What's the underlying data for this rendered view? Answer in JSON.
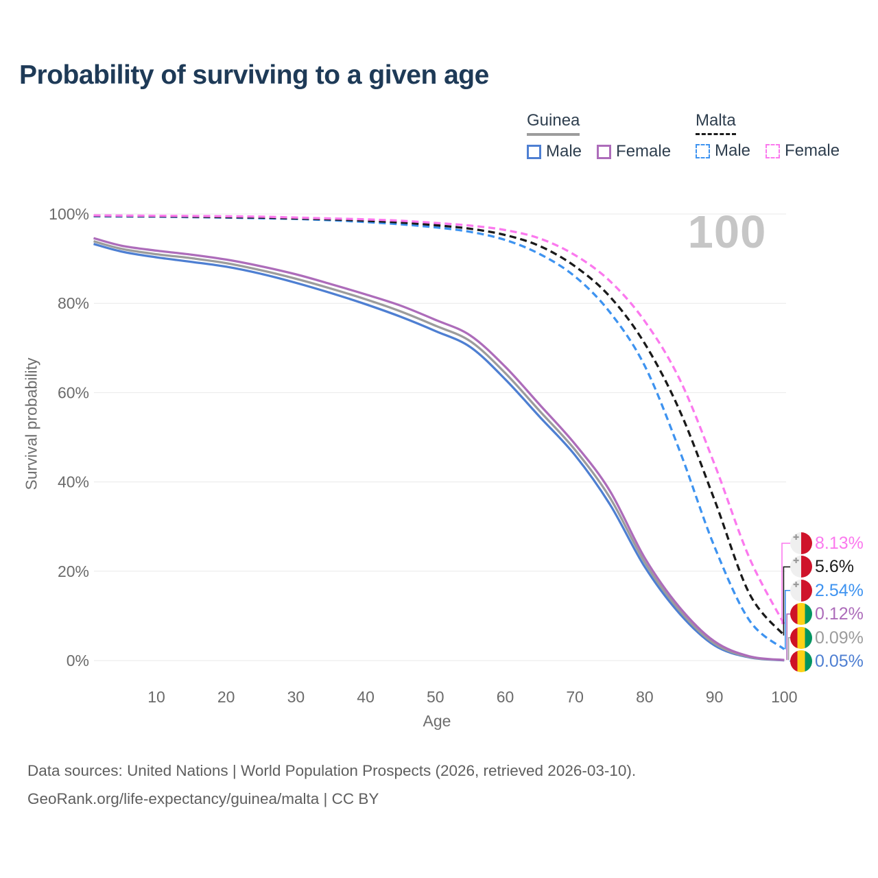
{
  "title": "Probability of surviving to a given age",
  "watermark_age": "100",
  "legend": {
    "groups": [
      {
        "label": "Guinea",
        "line_style": "solid",
        "line_color": "#9c9c9c",
        "items": [
          {
            "label": "Male",
            "color": "#4e7fd2"
          },
          {
            "label": "Female",
            "color": "#ad6cba"
          }
        ]
      },
      {
        "label": "Malta",
        "line_style": "dashed",
        "line_color": "#1a1a1a",
        "items": [
          {
            "label": "Male",
            "color": "#3e93f0"
          },
          {
            "label": "Female",
            "color": "#fb79ee"
          }
        ]
      }
    ]
  },
  "footer": {
    "line1": "Data sources: United Nations | World Population Prospects (2026, retrieved 2026-03-10).",
    "line2": "GeoRank.org/life-expectancy/guinea/malta | CC BY"
  },
  "chart_data": {
    "type": "line",
    "title": "Probability of surviving to a given age",
    "xlabel": "Age",
    "ylabel": "Survival probability",
    "x_ticks": [
      10,
      20,
      30,
      40,
      50,
      60,
      70,
      80,
      90,
      100
    ],
    "y_ticks": [
      0,
      20,
      40,
      60,
      80,
      100
    ],
    "y_tick_suffix": "%",
    "xlim": [
      0,
      100
    ],
    "ylim": [
      0,
      100
    ],
    "grid": true,
    "legend_position": "top-right",
    "hover_age": 100,
    "ages": [
      1,
      5,
      10,
      15,
      20,
      25,
      30,
      35,
      40,
      45,
      50,
      55,
      60,
      65,
      70,
      75,
      80,
      85,
      90,
      95,
      100
    ],
    "series": [
      {
        "name": "Guinea Male",
        "country": "Guinea",
        "sex": "Male",
        "style": "solid",
        "color": "#4e7fd2",
        "flag": "guinea",
        "end_label": "0.05%",
        "values": [
          93.3,
          91.6,
          90.3,
          89.3,
          88.2,
          86.6,
          84.6,
          82.3,
          79.8,
          77.0,
          73.8,
          70.2,
          63.0,
          54.5,
          46.0,
          35.0,
          21.0,
          10.5,
          3.4,
          0.7,
          0.05
        ]
      },
      {
        "name": "Guinea Both sexes",
        "country": "Guinea",
        "sex": "Both",
        "style": "solid",
        "color": "#9c9c9c",
        "flag": "guinea",
        "end_label": "0.09%",
        "values": [
          93.9,
          92.2,
          91.0,
          90.1,
          89.0,
          87.4,
          85.5,
          83.3,
          80.9,
          78.2,
          75.0,
          71.5,
          64.4,
          55.8,
          47.2,
          36.5,
          22.0,
          11.2,
          3.8,
          0.8,
          0.09
        ]
      },
      {
        "name": "Guinea Female",
        "country": "Guinea",
        "sex": "Female",
        "style": "solid",
        "color": "#ad6cba",
        "flag": "guinea",
        "end_label": "0.12%",
        "values": [
          94.6,
          92.9,
          91.8,
          90.9,
          89.8,
          88.3,
          86.5,
          84.3,
          82.0,
          79.5,
          76.3,
          72.8,
          65.8,
          57.2,
          48.5,
          38.0,
          23.0,
          11.9,
          4.3,
          0.95,
          0.12
        ]
      },
      {
        "name": "Malta Male",
        "country": "Malta",
        "sex": "Male",
        "style": "dashed",
        "color": "#3e93f0",
        "flag": "malta",
        "end_label": "2.54%",
        "values": [
          99.5,
          99.45,
          99.4,
          99.3,
          99.2,
          99.05,
          98.9,
          98.6,
          98.2,
          97.7,
          97.0,
          96.0,
          94.2,
          91.0,
          86.0,
          78.0,
          66.0,
          47.0,
          25.5,
          9.0,
          2.54
        ]
      },
      {
        "name": "Malta Both sexes",
        "country": "Malta",
        "sex": "Both",
        "style": "dashed",
        "color": "#1a1a1a",
        "flag": "malta",
        "end_label": "5.6%",
        "values": [
          99.6,
          99.55,
          99.5,
          99.4,
          99.3,
          99.2,
          99.0,
          98.8,
          98.5,
          98.1,
          97.5,
          96.7,
          95.3,
          92.8,
          88.3,
          81.5,
          71.0,
          56.0,
          36.0,
          15.0,
          5.6
        ]
      },
      {
        "name": "Malta Female",
        "country": "Malta",
        "sex": "Female",
        "style": "dashed",
        "color": "#fb79ee",
        "flag": "malta",
        "end_label": "8.13%",
        "values": [
          99.7,
          99.65,
          99.6,
          99.55,
          99.5,
          99.4,
          99.2,
          99.0,
          98.8,
          98.5,
          98.0,
          97.4,
          96.4,
          94.5,
          90.8,
          85.0,
          76.0,
          63.0,
          44.0,
          23.0,
          8.13
        ]
      }
    ]
  }
}
